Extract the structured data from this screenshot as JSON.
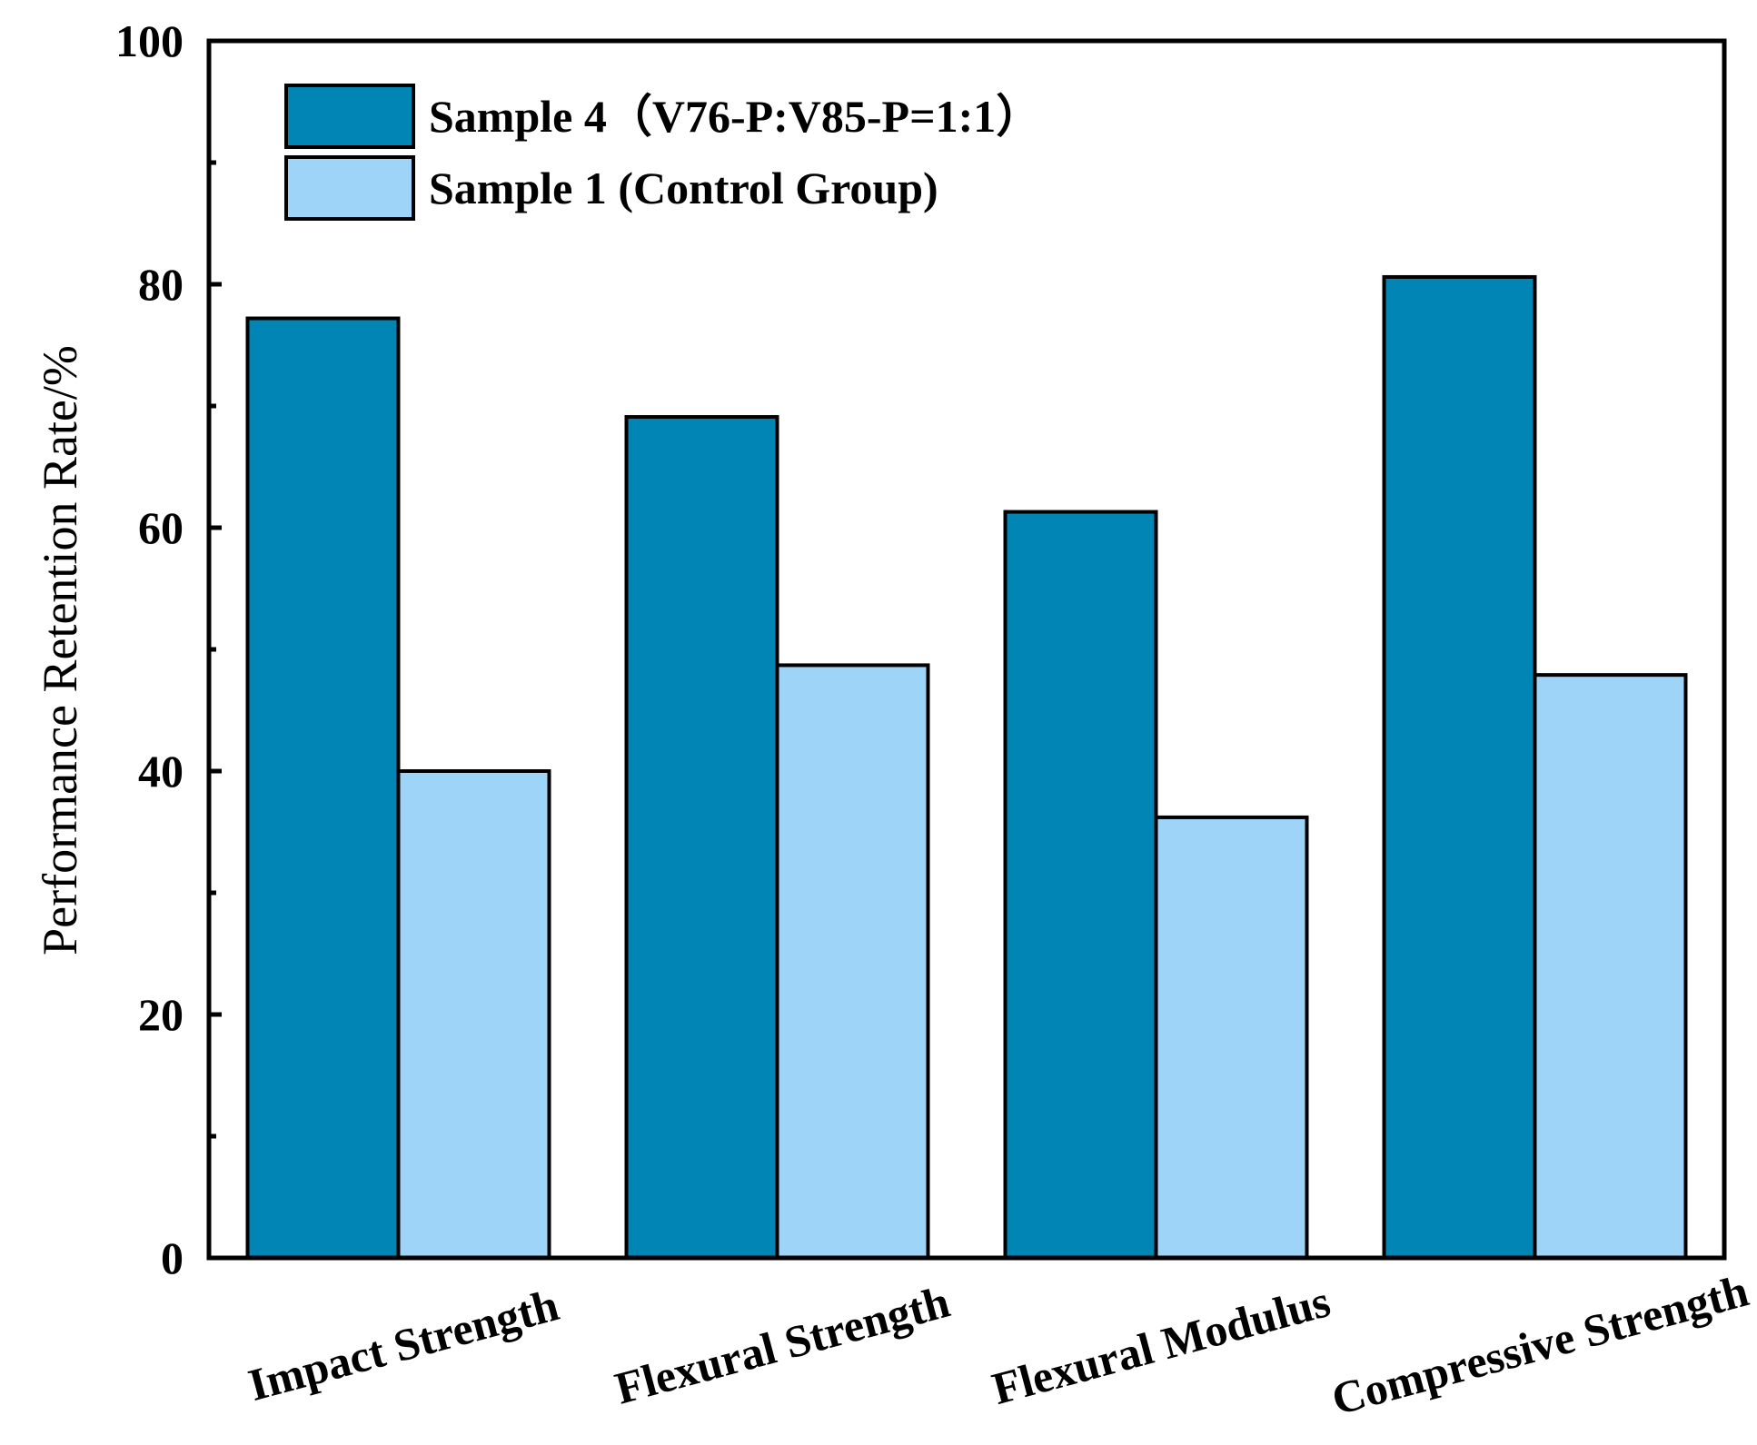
{
  "chart_data": {
    "type": "bar",
    "title": "",
    "xlabel": "",
    "ylabel": "Performance Retention Rate/%",
    "ylim": [
      0,
      100
    ],
    "yticks": [
      0,
      20,
      40,
      60,
      80,
      100
    ],
    "yminor": [
      10,
      30,
      50,
      70,
      90
    ],
    "grid": false,
    "legend_position": "top-left",
    "categories": [
      "Impact Strength",
      "Flexural Strength",
      "Flexural Modulus",
      "Compressive Strength"
    ],
    "series": [
      {
        "name": "Sample 4（V76-P:V85-P=1:1）",
        "color": "#0085b5",
        "values": [
          77.2,
          69.1,
          61.3,
          80.6
        ]
      },
      {
        "name": "Sample 1 (Control Group)",
        "color": "#9dd4f7",
        "values": [
          40.0,
          48.7,
          36.2,
          47.9
        ]
      }
    ]
  }
}
